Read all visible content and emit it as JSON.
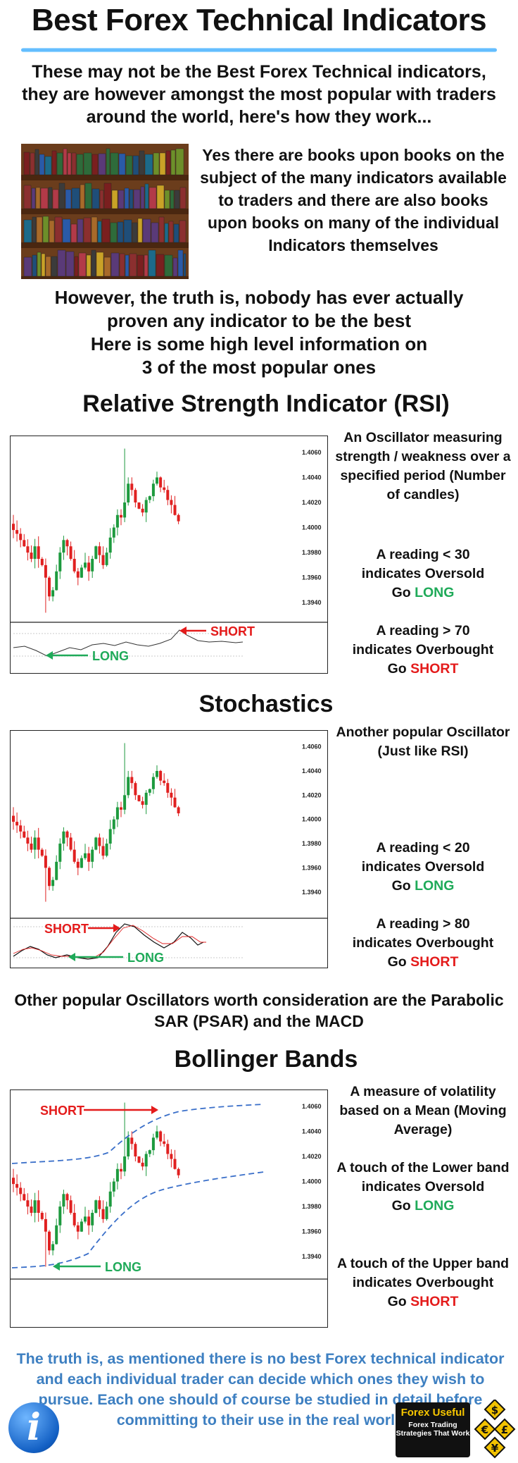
{
  "title": "Best Forex Technical Indicators",
  "intro": "These may not be the Best Forex Technical indicators, they are however amongst the most popular with traders around the world, here's how they work...",
  "books_text": "Yes there are books upon books on the subject of the many indicators available to traders and there are also books upon books on many of the individual Indicators themselves",
  "however_lines": [
    "However, the truth is, nobody has ever actually",
    "proven any indicator to be the best",
    "Here is some high level information on",
    "3 of the most popular ones"
  ],
  "colors": {
    "green": "#1faa59",
    "red": "#e41b1b",
    "footer_blue": "#3d7fc1",
    "band_blue": "#3a6fc9"
  },
  "price_axis_labels": [
    "1.4060",
    "1.4040",
    "1.4020",
    "1.4000",
    "1.3980",
    "1.3960",
    "1.3940"
  ],
  "rsi": {
    "heading": "Relative Strength Indicator (RSI)",
    "desc": "An Oscillator measuring strength / weakness over a specified period (Number of candles)",
    "low_reading": "A reading < 30",
    "oversold": "indicates Oversold",
    "go_long_prefix": "Go ",
    "long_word": "LONG",
    "high_reading": "A reading > 70",
    "overbought": "indicates Overbought",
    "go_short_prefix": "Go ",
    "short_word": "SHORT",
    "arrow_short": "SHORT",
    "arrow_long": "LONG"
  },
  "stochastics": {
    "heading": "Stochastics",
    "desc": "Another popular Oscillator (Just like RSI)",
    "low_reading": "A reading < 20",
    "oversold": "indicates Oversold",
    "go_long_prefix": "Go ",
    "long_word": "LONG",
    "high_reading": "A reading > 80",
    "overbought": "indicates Overbought",
    "go_short_prefix": "Go ",
    "short_word": "SHORT",
    "arrow_short": "SHORT",
    "arrow_long": "LONG"
  },
  "other_oscillators": "Other popular Oscillators worth consideration are the Parabolic SAR (PSAR) and the MACD",
  "bollinger": {
    "heading": "Bollinger Bands",
    "desc": "A measure of volatility based on a Mean (Moving Average)",
    "lower_touch": "A touch of the Lower band",
    "oversold": "indicates Oversold",
    "go_long_prefix": "Go ",
    "long_word": "LONG",
    "upper_touch": "A touch of the Upper band",
    "overbought": "indicates Overbought",
    "go_short_prefix": "Go ",
    "short_word": "SHORT",
    "arrow_short": "SHORT",
    "arrow_long": "LONG"
  },
  "footer_text": "The truth is, as mentioned there is no best Forex technical indicator and each individual trader can decide which ones they wish to pursue.  Each one should of course be studied in detail before committing to their use in the real world",
  "info_icon": {
    "glyph": "i",
    "name": "info-icon"
  },
  "logo": {
    "top": "Forex Useful",
    "bottom": "Forex Trading Strategies That Work"
  },
  "currency_badges": [
    "$",
    "€",
    "£",
    "¥"
  ]
}
